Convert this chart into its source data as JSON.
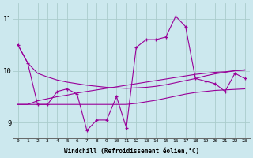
{
  "xlabel": "Windchill (Refroidissement éolien,°C)",
  "bg_color": "#cce8ee",
  "grid_color": "#aacccc",
  "line_color": "#990099",
  "xlim": [
    -0.5,
    23.5
  ],
  "ylim": [
    8.7,
    11.3
  ],
  "yticks": [
    9,
    10,
    11
  ],
  "xticks": [
    0,
    1,
    2,
    3,
    4,
    5,
    6,
    7,
    8,
    9,
    10,
    11,
    12,
    13,
    14,
    15,
    16,
    17,
    18,
    19,
    20,
    21,
    22,
    23
  ],
  "line1_x": [
    0,
    1,
    2,
    3,
    4,
    5,
    6,
    7,
    8,
    9,
    10,
    11,
    12,
    13,
    14,
    15,
    16,
    17,
    18,
    19,
    20,
    21,
    22,
    23
  ],
  "line1_y": [
    10.5,
    10.15,
    9.35,
    9.35,
    9.6,
    9.65,
    9.55,
    8.85,
    9.05,
    9.05,
    9.5,
    8.9,
    10.45,
    10.6,
    10.6,
    10.65,
    11.05,
    10.85,
    9.85,
    9.8,
    9.75,
    9.6,
    9.95,
    9.85
  ],
  "line2_x": [
    0,
    1,
    2,
    3,
    4,
    5,
    6,
    7,
    8,
    9,
    10,
    11,
    12,
    13,
    14,
    15,
    16,
    17,
    18,
    19,
    20,
    21,
    22,
    23
  ],
  "line2_y": [
    10.5,
    10.15,
    9.95,
    9.88,
    9.82,
    9.78,
    9.75,
    9.72,
    9.7,
    9.68,
    9.67,
    9.66,
    9.67,
    9.68,
    9.7,
    9.73,
    9.77,
    9.81,
    9.85,
    9.9,
    9.94,
    9.97,
    10.0,
    10.02
  ],
  "line3_x": [
    0,
    1,
    2,
    3,
    4,
    5,
    6,
    7,
    8,
    9,
    10,
    11,
    12,
    13,
    14,
    15,
    16,
    17,
    18,
    19,
    20,
    21,
    22,
    23
  ],
  "line3_y": [
    9.35,
    9.35,
    9.42,
    9.46,
    9.5,
    9.53,
    9.57,
    9.6,
    9.63,
    9.66,
    9.69,
    9.72,
    9.75,
    9.78,
    9.81,
    9.84,
    9.87,
    9.9,
    9.93,
    9.95,
    9.97,
    9.98,
    10.0,
    10.01
  ],
  "line4_x": [
    0,
    1,
    2,
    3,
    4,
    5,
    6,
    7,
    8,
    9,
    10,
    11,
    12,
    13,
    14,
    15,
    16,
    17,
    18,
    19,
    20,
    21,
    22,
    23
  ],
  "line4_y": [
    9.35,
    9.35,
    9.35,
    9.35,
    9.35,
    9.35,
    9.35,
    9.35,
    9.35,
    9.35,
    9.35,
    9.35,
    9.37,
    9.4,
    9.43,
    9.47,
    9.51,
    9.55,
    9.58,
    9.6,
    9.62,
    9.63,
    9.64,
    9.65
  ]
}
